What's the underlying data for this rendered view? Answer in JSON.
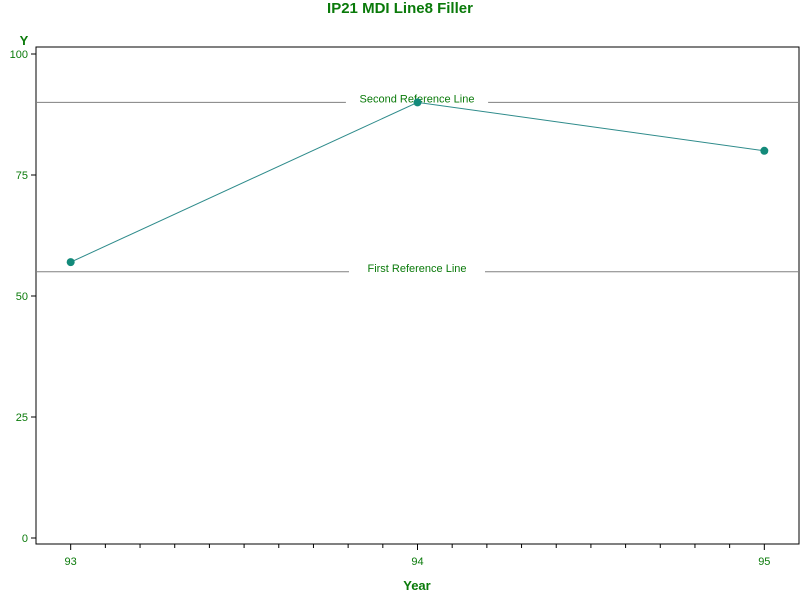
{
  "chart_data": {
    "type": "line",
    "title": "IP21 MDI Line8 Filler",
    "xlabel": "Year",
    "ylabel": "Y",
    "x": [
      93,
      94,
      95
    ],
    "xlim": [
      92.9,
      95.1
    ],
    "ylim": [
      0,
      100
    ],
    "x_ticks": [
      93,
      94,
      95
    ],
    "y_ticks": [
      0,
      25,
      50,
      75,
      100
    ],
    "series": [
      {
        "values": [
          57,
          90,
          80
        ],
        "color": "#2e8b8b",
        "marker_color": "#138a7a"
      }
    ],
    "reference_lines": [
      {
        "label": "First Reference Line",
        "value": 55
      },
      {
        "label": "Second Reference Line",
        "value": 90
      }
    ],
    "grid": false,
    "text_color": "#0a7a0a",
    "reference_line_color": "#808080",
    "axis_color": "#000000"
  }
}
